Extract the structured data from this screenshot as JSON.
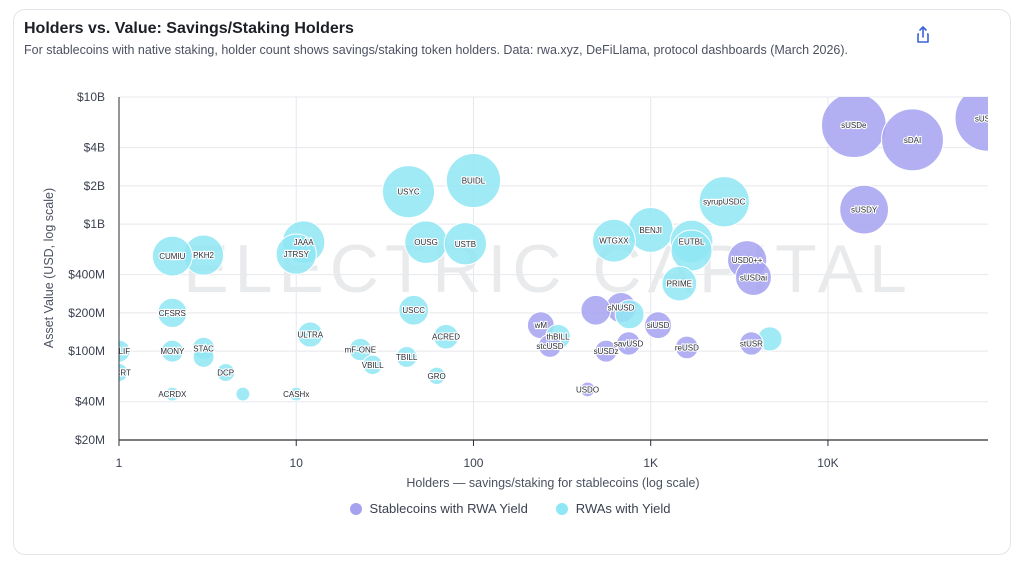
{
  "header": {
    "title": "Holders vs. Value: Savings/Staking Holders",
    "subtitle": "For stablecoins with native staking, holder count shows savings/staking token holders. Data: rwa.xyz, DeFiLlama, protocol dashboards (March 2026).",
    "share_icon": "share-icon"
  },
  "watermark": "ELECTRIC CAPITAL",
  "colors": {
    "stablecoin": "#a5a2f0",
    "rwa": "#8fe6f4",
    "grid": "#e6e8ec",
    "axis": "#2a2d35"
  },
  "legend": [
    {
      "label": "Stablecoins with RWA Yield",
      "color": "#a5a2f0"
    },
    {
      "label": "RWAs with Yield",
      "color": "#8fe6f4"
    }
  ],
  "chart_data": {
    "type": "scatter",
    "title": "Holders vs. Value: Savings/Staking Holders",
    "xlabel": "Holders — savings/staking for stablecoins (log scale)",
    "ylabel": "Asset Value (USD, log scale)",
    "xscale": "log",
    "yscale": "log",
    "xlim": [
      1,
      80000
    ],
    "ylim": [
      20000000,
      10000000000
    ],
    "x_ticks": [
      {
        "v": 1,
        "label": "1"
      },
      {
        "v": 10,
        "label": "10"
      },
      {
        "v": 100,
        "label": "100"
      },
      {
        "v": 1000,
        "label": "1K"
      },
      {
        "v": 10000,
        "label": "10K"
      }
    ],
    "y_ticks": [
      {
        "v": 20000000,
        "label": "$20M"
      },
      {
        "v": 40000000,
        "label": "$40M"
      },
      {
        "v": 100000000,
        "label": "$100M"
      },
      {
        "v": 200000000,
        "label": "$200M"
      },
      {
        "v": 400000000,
        "label": "$400M"
      },
      {
        "v": 1000000000,
        "label": "$1B"
      },
      {
        "v": 2000000000,
        "label": "$2B"
      },
      {
        "v": 4000000000,
        "label": "$4B"
      },
      {
        "v": 10000000000,
        "label": "$10B"
      }
    ],
    "series": [
      {
        "name": "Stablecoins with RWA Yield",
        "points": [
          {
            "label": "sUSDe",
            "x": 14000,
            "y": 6000000000
          },
          {
            "label": "sDAI",
            "x": 30000,
            "y": 4600000000
          },
          {
            "label": "sUSDS",
            "x": 80000,
            "y": 6800000000
          },
          {
            "label": "sUSDY",
            "x": 16000,
            "y": 1300000000
          },
          {
            "label": "USD0++",
            "x": 3500,
            "y": 520000000
          },
          {
            "label": "sUSDai",
            "x": 3800,
            "y": 380000000
          },
          {
            "label": "",
            "x": 490,
            "y": 210000000
          },
          {
            "label": "sNUSD",
            "x": 680,
            "y": 220000000
          },
          {
            "label": "siUSD",
            "x": 1100,
            "y": 160000000
          },
          {
            "label": "wM",
            "x": 240,
            "y": 160000000
          },
          {
            "label": "stcUSD",
            "x": 270,
            "y": 110000000
          },
          {
            "label": "sUSDz",
            "x": 560,
            "y": 100000000
          },
          {
            "label": "savUSD",
            "x": 750,
            "y": 115000000
          },
          {
            "label": "reUSD",
            "x": 1600,
            "y": 107000000
          },
          {
            "label": "stUSR",
            "x": 3700,
            "y": 115000000
          },
          {
            "label": "USDO",
            "x": 440,
            "y": 50000000
          }
        ]
      },
      {
        "name": "RWAs with Yield",
        "points": [
          {
            "label": "BUIDL",
            "x": 100,
            "y": 2200000000
          },
          {
            "label": "USYC",
            "x": 43,
            "y": 1800000000
          },
          {
            "label": "syrupUSDC",
            "x": 2600,
            "y": 1500000000
          },
          {
            "label": "BENJI",
            "x": 1000,
            "y": 900000000
          },
          {
            "label": "WTGXX",
            "x": 620,
            "y": 740000000
          },
          {
            "label": "EUTBL",
            "x": 1700,
            "y": 730000000
          },
          {
            "label": "JAAA",
            "x": 11,
            "y": 720000000
          },
          {
            "label": "OUSG",
            "x": 54,
            "y": 720000000
          },
          {
            "label": "USTB",
            "x": 90,
            "y": 700000000
          },
          {
            "label": "",
            "x": 1700,
            "y": 620000000
          },
          {
            "label": "JTRSY",
            "x": 10,
            "y": 580000000
          },
          {
            "label": "CUMIU",
            "x": 2,
            "y": 560000000
          },
          {
            "label": "PKH2",
            "x": 3,
            "y": 570000000
          },
          {
            "label": "PRIME",
            "x": 1450,
            "y": 340000000
          },
          {
            "label": "CFSRS",
            "x": 2,
            "y": 200000000
          },
          {
            "label": "USCC",
            "x": 46,
            "y": 210000000
          },
          {
            "label": "",
            "x": 760,
            "y": 195000000
          },
          {
            "label": "ULTRA",
            "x": 12,
            "y": 135000000
          },
          {
            "label": "ACRED",
            "x": 70,
            "y": 130000000
          },
          {
            "label": "thBILL",
            "x": 300,
            "y": 130000000
          },
          {
            "label": "",
            "x": 4700,
            "y": 125000000
          },
          {
            "label": "BELIF",
            "x": 1,
            "y": 100000000
          },
          {
            "label": "MONY",
            "x": 2,
            "y": 100000000
          },
          {
            "label": "STAC",
            "x": 3,
            "y": 105000000
          },
          {
            "label": "",
            "x": 3,
            "y": 90000000
          },
          {
            "label": "mF-ONE",
            "x": 23,
            "y": 103000000
          },
          {
            "label": "TBILL",
            "x": 42,
            "y": 90000000
          },
          {
            "label": "VBILL",
            "x": 27,
            "y": 78000000
          },
          {
            "label": "DCP",
            "x": 4,
            "y": 68000000
          },
          {
            "label": "AICRT",
            "x": 1,
            "y": 68000000
          },
          {
            "label": "GRO",
            "x": 62,
            "y": 64000000
          },
          {
            "label": "ACRDX",
            "x": 2,
            "y": 46000000
          },
          {
            "label": "",
            "x": 5,
            "y": 46000000
          },
          {
            "label": "CASHx",
            "x": 10,
            "y": 46000000
          }
        ]
      }
    ]
  }
}
